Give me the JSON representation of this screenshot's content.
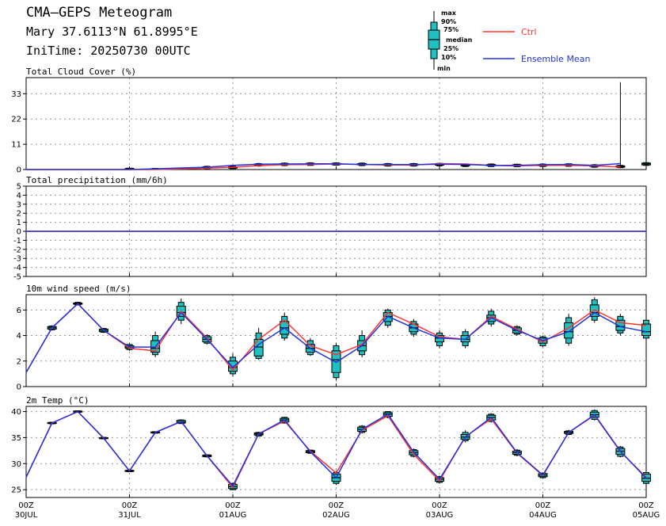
{
  "header": {
    "title": "CMA—GEPS Meteogram",
    "location": "Mary 37.6113°N 61.8995°E",
    "init_time": "IniTime: 20250730 00UTC"
  },
  "legend": {
    "box_labels": [
      "max",
      "90%",
      "75%",
      "median",
      "25%",
      "10%",
      "min"
    ],
    "ctrl_label": "Ctrl",
    "mean_label": "Ensemble Mean",
    "ctrl_color": "#ff3333",
    "mean_color": "#2233dd",
    "box_color": "#20c0c0"
  },
  "chart_data": [
    {
      "type": "boxplot",
      "title": "Total Cloud Cover (%)",
      "ylim": [
        0,
        40
      ],
      "yticks": [
        0,
        11,
        22,
        33
      ],
      "grid": true,
      "x": [
        0,
        6,
        12,
        18,
        24,
        30,
        36,
        42,
        48,
        54,
        60,
        66,
        72,
        78,
        84,
        90,
        96,
        102,
        108,
        114,
        120,
        126,
        132,
        138
      ],
      "ctrl": [
        0,
        0,
        0,
        0,
        0,
        0,
        0.3,
        0.6,
        1.0,
        1.7,
        2.1,
        2.2,
        2.4,
        2.2,
        2.0,
        2.0,
        2.6,
        2.4,
        1.8,
        1.6,
        1.8,
        1.8,
        1.6,
        1.1
      ],
      "mean": [
        0,
        0,
        0,
        0,
        0,
        0.3,
        0.7,
        1.0,
        1.8,
        2.3,
        2.4,
        2.5,
        2.5,
        2.2,
        2.2,
        2.1,
        2.3,
        2.2,
        1.8,
        1.8,
        2.1,
        2.2,
        1.8,
        2.6
      ],
      "boxes": [
        {
          "x": 24,
          "min": 0,
          "p10": 0,
          "p25": 0.2,
          "median": 0.3,
          "p75": 0.5,
          "p90": 0.6,
          "max": 0.8
        },
        {
          "x": 30,
          "min": 0,
          "p10": 0,
          "p25": 0.1,
          "median": 0.2,
          "p75": 0.4,
          "p90": 0.5,
          "max": 0.7
        },
        {
          "x": 36,
          "min": 0,
          "p10": 0,
          "p25": 0.1,
          "median": 0.2,
          "p75": 0.4,
          "p90": 0.5,
          "max": 0.7
        },
        {
          "x": 42,
          "min": 0.2,
          "p10": 0.4,
          "p25": 0.6,
          "median": 0.8,
          "p75": 1.2,
          "p90": 1.4,
          "max": 1.6
        },
        {
          "x": 48,
          "min": 0.2,
          "p10": 0.4,
          "p25": 0.6,
          "median": 0.9,
          "p75": 1.2,
          "p90": 1.4,
          "max": 1.7
        },
        {
          "x": 54,
          "min": 1.2,
          "p10": 1.5,
          "p25": 1.8,
          "median": 2.1,
          "p75": 2.4,
          "p90": 2.6,
          "max": 2.9
        },
        {
          "x": 60,
          "min": 1.5,
          "p10": 1.7,
          "p25": 2.0,
          "median": 2.3,
          "p75": 2.6,
          "p90": 2.8,
          "max": 3.1
        },
        {
          "x": 66,
          "min": 1.6,
          "p10": 1.8,
          "p25": 2.1,
          "median": 2.4,
          "p75": 2.7,
          "p90": 2.9,
          "max": 3.2
        },
        {
          "x": 72,
          "min": 1.7,
          "p10": 1.9,
          "p25": 2.1,
          "median": 2.4,
          "p75": 2.7,
          "p90": 2.9,
          "max": 3.2
        },
        {
          "x": 78,
          "min": 1.5,
          "p10": 1.7,
          "p25": 2.0,
          "median": 2.3,
          "p75": 2.6,
          "p90": 2.8,
          "max": 3.1
        },
        {
          "x": 84,
          "min": 1.3,
          "p10": 1.5,
          "p25": 1.8,
          "median": 2.1,
          "p75": 2.4,
          "p90": 2.6,
          "max": 2.9
        },
        {
          "x": 90,
          "min": 1.3,
          "p10": 1.5,
          "p25": 1.8,
          "median": 2.1,
          "p75": 2.4,
          "p90": 2.6,
          "max": 2.9
        },
        {
          "x": 96,
          "min": 1.4,
          "p10": 1.6,
          "p25": 1.9,
          "median": 2.2,
          "p75": 2.5,
          "p90": 2.7,
          "max": 3.0
        },
        {
          "x": 102,
          "min": 1.1,
          "p10": 1.3,
          "p25": 1.6,
          "median": 1.9,
          "p75": 2.2,
          "p90": 2.4,
          "max": 2.7
        },
        {
          "x": 108,
          "min": 1.1,
          "p10": 1.3,
          "p25": 1.6,
          "median": 1.9,
          "p75": 2.2,
          "p90": 2.4,
          "max": 2.7
        },
        {
          "x": 114,
          "min": 1.0,
          "p10": 1.2,
          "p25": 1.5,
          "median": 1.8,
          "p75": 2.1,
          "p90": 2.3,
          "max": 2.6
        },
        {
          "x": 120,
          "min": 1.1,
          "p10": 1.3,
          "p25": 1.6,
          "median": 1.9,
          "p75": 2.2,
          "p90": 2.4,
          "max": 2.7
        },
        {
          "x": 126,
          "min": 1.2,
          "p10": 1.4,
          "p25": 1.7,
          "median": 2.0,
          "p75": 2.3,
          "p90": 2.5,
          "max": 2.8
        },
        {
          "x": 132,
          "min": 0.8,
          "p10": 1.0,
          "p25": 1.3,
          "median": 1.6,
          "p75": 1.9,
          "p90": 2.1,
          "max": 2.4
        },
        {
          "x": 138,
          "min": 0.6,
          "p10": 0.8,
          "p25": 1.0,
          "median": 1.3,
          "p75": 1.6,
          "p90": 1.8,
          "max": 38
        },
        {
          "x": 144,
          "min": 1.5,
          "p10": 1.8,
          "p25": 2.0,
          "median": 2.4,
          "p75": 2.8,
          "p90": 3.0,
          "max": 3.4
        }
      ]
    },
    {
      "type": "line",
      "title": "Total precipitation (mm/6h)",
      "ylim": [
        -5,
        5
      ],
      "yticks": [
        -5,
        -4,
        -3,
        -2,
        -1,
        0,
        1,
        2,
        3,
        4,
        5
      ],
      "grid": true,
      "x": [
        0,
        144
      ],
      "ctrl": [
        0,
        0
      ],
      "mean": [
        0,
        0
      ]
    },
    {
      "type": "boxplot",
      "title": "10m wind speed (m/s)",
      "ylim": [
        0,
        7.2
      ],
      "yticks": [
        0,
        2,
        4,
        6
      ],
      "grid": true,
      "x": [
        0,
        6,
        12,
        18,
        24,
        30,
        36,
        42,
        48,
        54,
        60,
        66,
        72,
        78,
        84,
        90,
        96,
        102,
        108,
        114,
        120,
        126,
        132,
        138,
        144
      ],
      "ctrl": [
        1.1,
        4.6,
        6.5,
        4.4,
        3.0,
        2.8,
        5.9,
        3.8,
        1.3,
        3.7,
        5.2,
        3.2,
        2.5,
        3.3,
        5.8,
        4.9,
        3.9,
        3.7,
        5.5,
        4.5,
        3.5,
        4.6,
        6.0,
        5.0,
        4.8
      ],
      "mean": [
        1.1,
        4.6,
        6.5,
        4.4,
        3.1,
        3.1,
        5.8,
        3.7,
        1.5,
        3.3,
        4.6,
        3.0,
        1.9,
        3.2,
        5.5,
        4.6,
        3.8,
        3.7,
        5.4,
        4.4,
        3.6,
        4.3,
        5.8,
        4.7,
        4.3
      ],
      "boxes": [
        {
          "x": 6,
          "min": 4.4,
          "p10": 4.45,
          "p25": 4.5,
          "median": 4.6,
          "p75": 4.7,
          "p90": 4.75,
          "max": 4.8
        },
        {
          "x": 12,
          "min": 6.35,
          "p10": 6.4,
          "p25": 6.45,
          "median": 6.5,
          "p75": 6.55,
          "p90": 6.6,
          "max": 6.65
        },
        {
          "x": 18,
          "min": 4.2,
          "p10": 4.25,
          "p25": 4.3,
          "median": 4.4,
          "p75": 4.5,
          "p90": 4.55,
          "max": 4.6
        },
        {
          "x": 24,
          "min": 2.8,
          "p10": 2.9,
          "p25": 3.0,
          "median": 3.1,
          "p75": 3.2,
          "p90": 3.3,
          "max": 3.4
        },
        {
          "x": 30,
          "min": 2.3,
          "p10": 2.5,
          "p25": 2.7,
          "median": 3.0,
          "p75": 3.6,
          "p90": 4.0,
          "max": 4.3
        },
        {
          "x": 36,
          "min": 4.9,
          "p10": 5.2,
          "p25": 5.5,
          "median": 5.8,
          "p75": 6.3,
          "p90": 6.6,
          "max": 6.9
        },
        {
          "x": 42,
          "min": 3.3,
          "p10": 3.4,
          "p25": 3.5,
          "median": 3.7,
          "p75": 3.9,
          "p90": 4.0,
          "max": 4.1
        },
        {
          "x": 48,
          "min": 0.8,
          "p10": 1.0,
          "p25": 1.2,
          "median": 1.5,
          "p75": 2.0,
          "p90": 2.3,
          "max": 2.6
        },
        {
          "x": 54,
          "min": 2.1,
          "p10": 2.2,
          "p25": 2.4,
          "median": 3.1,
          "p75": 3.7,
          "p90": 4.2,
          "max": 4.6
        },
        {
          "x": 60,
          "min": 3.6,
          "p10": 3.8,
          "p25": 4.1,
          "median": 4.6,
          "p75": 5.1,
          "p90": 5.5,
          "max": 5.8
        },
        {
          "x": 66,
          "min": 2.4,
          "p10": 2.5,
          "p25": 2.7,
          "median": 3.0,
          "p75": 3.3,
          "p90": 3.6,
          "max": 3.8
        },
        {
          "x": 72,
          "min": 0.5,
          "p10": 0.7,
          "p25": 1.1,
          "median": 2.1,
          "p75": 2.8,
          "p90": 3.2,
          "max": 3.4
        },
        {
          "x": 78,
          "min": 2.3,
          "p10": 2.5,
          "p25": 2.8,
          "median": 3.2,
          "p75": 3.6,
          "p90": 4.0,
          "max": 4.4
        },
        {
          "x": 84,
          "min": 4.6,
          "p10": 4.8,
          "p25": 5.1,
          "median": 5.5,
          "p75": 5.8,
          "p90": 6.0,
          "max": 6.1
        },
        {
          "x": 90,
          "min": 3.9,
          "p10": 4.1,
          "p25": 4.3,
          "median": 4.6,
          "p75": 4.9,
          "p90": 5.1,
          "max": 5.3
        },
        {
          "x": 96,
          "min": 3.0,
          "p10": 3.2,
          "p25": 3.5,
          "median": 3.8,
          "p75": 4.0,
          "p90": 4.2,
          "max": 4.4
        },
        {
          "x": 102,
          "min": 3.0,
          "p10": 3.2,
          "p25": 3.5,
          "median": 3.7,
          "p75": 4.0,
          "p90": 4.3,
          "max": 4.5
        },
        {
          "x": 108,
          "min": 4.7,
          "p10": 4.9,
          "p25": 5.1,
          "median": 5.4,
          "p75": 5.6,
          "p90": 5.9,
          "max": 6.1
        },
        {
          "x": 114,
          "min": 4.0,
          "p10": 4.1,
          "p25": 4.2,
          "median": 4.4,
          "p75": 4.6,
          "p90": 4.7,
          "max": 4.8
        },
        {
          "x": 120,
          "min": 3.1,
          "p10": 3.2,
          "p25": 3.4,
          "median": 3.6,
          "p75": 3.8,
          "p90": 3.9,
          "max": 4.0
        },
        {
          "x": 126,
          "min": 3.2,
          "p10": 3.4,
          "p25": 3.8,
          "median": 4.3,
          "p75": 5.0,
          "p90": 5.4,
          "max": 5.7
        },
        {
          "x": 132,
          "min": 5.0,
          "p10": 5.2,
          "p25": 5.5,
          "median": 5.8,
          "p75": 6.4,
          "p90": 6.8,
          "max": 7.0
        },
        {
          "x": 138,
          "min": 4.0,
          "p10": 4.2,
          "p25": 4.4,
          "median": 4.7,
          "p75": 5.2,
          "p90": 5.5,
          "max": 5.7
        },
        {
          "x": 144,
          "min": 3.6,
          "p10": 3.8,
          "p25": 4.0,
          "median": 4.3,
          "p75": 4.9,
          "p90": 5.2,
          "max": 5.4
        }
      ]
    },
    {
      "type": "boxplot",
      "title": "2m Temp (°C)",
      "ylim": [
        23.5,
        41
      ],
      "yticks": [
        25,
        30,
        35,
        40
      ],
      "grid": true,
      "x": [
        0,
        6,
        12,
        18,
        24,
        30,
        36,
        42,
        48,
        54,
        60,
        66,
        72,
        78,
        84,
        90,
        96,
        102,
        108,
        114,
        120,
        126,
        132,
        138,
        144
      ],
      "ctrl": [
        27.4,
        37.8,
        40.0,
        34.9,
        28.6,
        36.0,
        38.1,
        31.5,
        25.4,
        35.7,
        38.2,
        32.4,
        28.2,
        36.4,
        39.2,
        31.8,
        26.7,
        35.2,
        38.6,
        32.0,
        27.7,
        36.0,
        39.3,
        32.3,
        27.4
      ],
      "mean": [
        27.4,
        37.8,
        40.0,
        34.9,
        28.6,
        36.0,
        38.1,
        31.5,
        25.7,
        35.7,
        38.4,
        32.3,
        27.3,
        36.6,
        39.5,
        32.2,
        27.0,
        35.1,
        38.9,
        32.1,
        27.8,
        36.0,
        39.4,
        32.4,
        27.2
      ],
      "boxes": [
        {
          "x": 6,
          "min": 37.6,
          "p10": 37.65,
          "p25": 37.7,
          "median": 37.8,
          "p75": 37.9,
          "p90": 37.95,
          "max": 38.0
        },
        {
          "x": 12,
          "min": 39.8,
          "p10": 39.85,
          "p25": 39.9,
          "median": 40.0,
          "p75": 40.1,
          "p90": 40.15,
          "max": 40.2
        },
        {
          "x": 18,
          "min": 34.7,
          "p10": 34.75,
          "p25": 34.8,
          "median": 34.9,
          "p75": 35.0,
          "p90": 35.05,
          "max": 35.1
        },
        {
          "x": 24,
          "min": 28.4,
          "p10": 28.45,
          "p25": 28.5,
          "median": 28.6,
          "p75": 28.7,
          "p90": 28.75,
          "max": 28.8
        },
        {
          "x": 30,
          "min": 35.8,
          "p10": 35.85,
          "p25": 35.9,
          "median": 36.0,
          "p75": 36.1,
          "p90": 36.15,
          "max": 36.2
        },
        {
          "x": 36,
          "min": 37.6,
          "p10": 37.7,
          "p25": 37.8,
          "median": 38.0,
          "p75": 38.3,
          "p90": 38.4,
          "max": 38.5
        },
        {
          "x": 42,
          "min": 31.2,
          "p10": 31.3,
          "p25": 31.35,
          "median": 31.5,
          "p75": 31.65,
          "p90": 31.7,
          "max": 31.8
        },
        {
          "x": 48,
          "min": 24.9,
          "p10": 25.0,
          "p25": 25.2,
          "median": 25.6,
          "p75": 26.0,
          "p90": 26.2,
          "max": 26.4
        },
        {
          "x": 54,
          "min": 35.2,
          "p10": 35.3,
          "p25": 35.5,
          "median": 35.7,
          "p75": 35.9,
          "p90": 36.0,
          "max": 36.1
        },
        {
          "x": 60,
          "min": 37.7,
          "p10": 37.8,
          "p25": 38.0,
          "median": 38.4,
          "p75": 38.7,
          "p90": 38.9,
          "max": 39.0
        },
        {
          "x": 66,
          "min": 31.9,
          "p10": 32.0,
          "p25": 32.1,
          "median": 32.3,
          "p75": 32.5,
          "p90": 32.6,
          "max": 32.7
        },
        {
          "x": 72,
          "min": 25.9,
          "p10": 26.2,
          "p25": 26.6,
          "median": 27.3,
          "p75": 28.0,
          "p90": 28.3,
          "max": 28.6
        },
        {
          "x": 78,
          "min": 35.8,
          "p10": 36.0,
          "p25": 36.2,
          "median": 36.6,
          "p75": 37.0,
          "p90": 37.2,
          "max": 37.4
        },
        {
          "x": 84,
          "min": 38.7,
          "p10": 38.9,
          "p25": 39.1,
          "median": 39.5,
          "p75": 39.8,
          "p90": 40.0,
          "max": 40.1
        },
        {
          "x": 90,
          "min": 31.2,
          "p10": 31.4,
          "p25": 31.7,
          "median": 32.1,
          "p75": 32.5,
          "p90": 32.7,
          "max": 32.9
        },
        {
          "x": 96,
          "min": 26.2,
          "p10": 26.4,
          "p25": 26.6,
          "median": 27.0,
          "p75": 27.3,
          "p90": 27.5,
          "max": 27.7
        },
        {
          "x": 102,
          "min": 34.1,
          "p10": 34.4,
          "p25": 34.7,
          "median": 35.1,
          "p75": 35.6,
          "p90": 36.0,
          "max": 36.4
        },
        {
          "x": 108,
          "min": 37.9,
          "p10": 38.1,
          "p25": 38.4,
          "median": 38.9,
          "p75": 39.3,
          "p90": 39.5,
          "max": 39.7
        },
        {
          "x": 114,
          "min": 31.4,
          "p10": 31.6,
          "p25": 31.8,
          "median": 32.1,
          "p75": 32.4,
          "p90": 32.6,
          "max": 32.8
        },
        {
          "x": 120,
          "min": 27.2,
          "p10": 27.3,
          "p25": 27.5,
          "median": 27.8,
          "p75": 28.1,
          "p90": 28.2,
          "max": 28.3
        },
        {
          "x": 126,
          "min": 35.5,
          "p10": 35.6,
          "p25": 35.8,
          "median": 36.0,
          "p75": 36.2,
          "p90": 36.3,
          "max": 36.5
        },
        {
          "x": 132,
          "min": 38.3,
          "p10": 38.5,
          "p25": 38.9,
          "median": 39.4,
          "p75": 39.9,
          "p90": 40.2,
          "max": 40.4
        },
        {
          "x": 138,
          "min": 31.2,
          "p10": 31.4,
          "p25": 31.8,
          "median": 32.4,
          "p75": 32.9,
          "p90": 33.2,
          "max": 33.4
        },
        {
          "x": 144,
          "min": 25.9,
          "p10": 26.2,
          "p25": 26.6,
          "median": 27.2,
          "p75": 28.0,
          "p90": 28.3,
          "max": 28.6
        }
      ]
    }
  ],
  "x_axis": {
    "ticks": [
      0,
      24,
      48,
      72,
      96,
      120,
      144
    ],
    "hour_labels": [
      "00Z",
      "00Z",
      "00Z",
      "00Z",
      "00Z",
      "00Z",
      "00Z"
    ],
    "date_labels": [
      "30JUL",
      "31JUL",
      "01AUG",
      "02AUG",
      "03AUG",
      "04AUG",
      "05AUG"
    ]
  }
}
